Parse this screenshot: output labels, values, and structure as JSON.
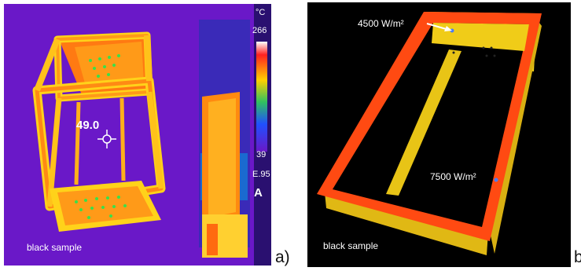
{
  "panel_a": {
    "label": "a)",
    "sample_label": "black sample",
    "temperature_readout": "49.0",
    "scale": {
      "unit": "°C",
      "max": "266",
      "min": "39",
      "emissivity": "E.95",
      "mode": "A"
    }
  },
  "panel_b": {
    "label": "b",
    "sample_label": "black sample",
    "annotations": {
      "top": "4500 W/m²",
      "bottom": "7500 W/m²"
    }
  },
  "colors": {
    "thermal_background": "#6a18c8",
    "hot_orange": "#ff6a10",
    "hot_yellow": "#ffd21a",
    "frame_red": "#ff4a12",
    "sim_background": "#000000"
  }
}
